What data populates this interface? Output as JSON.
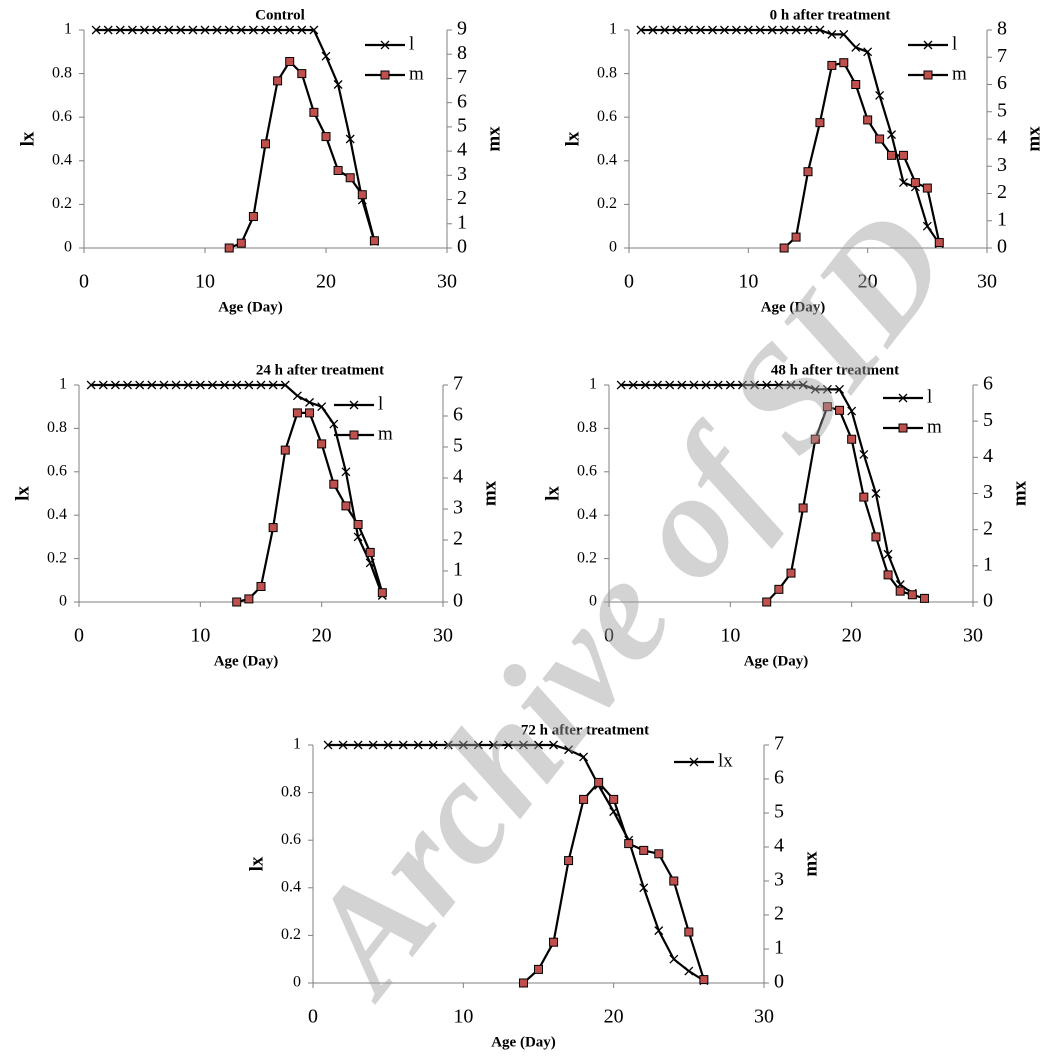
{
  "chart_data": [
    {
      "type": "line",
      "title": "Control",
      "x_label": "Age (Day)",
      "y_label": "lx",
      "y2_label": "mx",
      "x": [
        1,
        2,
        3,
        4,
        5,
        6,
        7,
        8,
        9,
        10,
        11,
        12,
        13,
        14,
        15,
        16,
        17,
        18,
        19,
        20,
        21,
        22,
        23,
        24
      ],
      "xlim": [
        0,
        30
      ],
      "xticks": [
        0,
        10,
        20,
        30
      ],
      "ylim": [
        0,
        1
      ],
      "yticks": [
        0,
        0.2,
        0.4,
        0.6,
        0.8,
        1
      ],
      "y2lim": [
        0,
        9
      ],
      "y2ticks": [
        0,
        1,
        2,
        3,
        4,
        5,
        6,
        7,
        8,
        9
      ],
      "legend": "top-right",
      "series": [
        {
          "name": "l",
          "axis": "y",
          "color": "#000000",
          "marker": "x",
          "values": [
            1,
            1,
            1,
            1,
            1,
            1,
            1,
            1,
            1,
            1,
            1,
            1,
            1,
            1,
            1,
            1,
            1,
            1,
            1,
            0.88,
            0.75,
            0.5,
            0.22,
            0.03
          ]
        },
        {
          "name": "m",
          "axis": "y2",
          "color": "#000000",
          "marker": "square",
          "marker_color": "#c0504d",
          "values": [
            null,
            null,
            null,
            null,
            null,
            null,
            null,
            null,
            null,
            null,
            null,
            0,
            0.2,
            1.3,
            4.3,
            6.9,
            7.7,
            7.2,
            5.6,
            4.6,
            3.2,
            2.9,
            2.2,
            0.3
          ]
        }
      ]
    },
    {
      "type": "line",
      "title": "0 h after treatment",
      "x_label": "Age (Day)",
      "y_label": "lx",
      "y2_label": "mx",
      "x": [
        1,
        2,
        3,
        4,
        5,
        6,
        7,
        8,
        9,
        10,
        11,
        12,
        13,
        14,
        15,
        16,
        17,
        18,
        19,
        20,
        21,
        22,
        23,
        24,
        25,
        26
      ],
      "xlim": [
        0,
        30
      ],
      "xticks": [
        0,
        10,
        20,
        30
      ],
      "ylim": [
        0,
        1
      ],
      "yticks": [
        0,
        0.2,
        0.4,
        0.6,
        0.8,
        1
      ],
      "y2lim": [
        0,
        8
      ],
      "y2ticks": [
        0,
        1,
        2,
        3,
        4,
        5,
        6,
        7,
        8
      ],
      "legend": "top-right",
      "series": [
        {
          "name": "l",
          "axis": "y",
          "color": "#000000",
          "marker": "x",
          "values": [
            1,
            1,
            1,
            1,
            1,
            1,
            1,
            1,
            1,
            1,
            1,
            1,
            1,
            1,
            1,
            1,
            0.98,
            0.98,
            0.92,
            0.9,
            0.7,
            0.52,
            0.3,
            0.28,
            0.1,
            0.02
          ]
        },
        {
          "name": "m",
          "axis": "y2",
          "color": "#000000",
          "marker": "square",
          "marker_color": "#c0504d",
          "values": [
            null,
            null,
            null,
            null,
            null,
            null,
            null,
            null,
            null,
            null,
            null,
            null,
            0,
            0.4,
            2.8,
            4.6,
            6.7,
            6.8,
            6.0,
            4.7,
            4.0,
            3.4,
            3.4,
            2.4,
            2.2,
            0.2
          ]
        }
      ]
    },
    {
      "type": "line",
      "title": "24 h after treatment",
      "x_label": "Age (Day)",
      "y_label": "lx",
      "y2_label": "mx",
      "x": [
        1,
        2,
        3,
        4,
        5,
        6,
        7,
        8,
        9,
        10,
        11,
        12,
        13,
        14,
        15,
        16,
        17,
        18,
        19,
        20,
        21,
        22,
        23,
        24,
        25
      ],
      "xlim": [
        0,
        30
      ],
      "xticks": [
        0,
        10,
        20,
        30
      ],
      "ylim": [
        0,
        1
      ],
      "yticks": [
        0,
        0.2,
        0.4,
        0.6,
        0.8,
        1
      ],
      "y2lim": [
        0,
        7
      ],
      "y2ticks": [
        0,
        1,
        2,
        3,
        4,
        5,
        6,
        7
      ],
      "legend": "top-right",
      "series": [
        {
          "name": "l",
          "axis": "y",
          "color": "#000000",
          "marker": "x",
          "values": [
            1,
            1,
            1,
            1,
            1,
            1,
            1,
            1,
            1,
            1,
            1,
            1,
            1,
            1,
            1,
            1,
            1,
            0.95,
            0.92,
            0.9,
            0.82,
            0.6,
            0.3,
            0.18,
            0.03
          ]
        },
        {
          "name": "m",
          "axis": "y2",
          "color": "#000000",
          "marker": "square",
          "marker_color": "#c0504d",
          "values": [
            null,
            null,
            null,
            null,
            null,
            null,
            null,
            null,
            null,
            null,
            null,
            null,
            0,
            0.1,
            0.5,
            2.4,
            4.9,
            6.1,
            6.1,
            5.1,
            3.8,
            3.1,
            2.5,
            1.6,
            0.3
          ]
        }
      ]
    },
    {
      "type": "line",
      "title": "48 h after treatment",
      "x_label": "Age (Day)",
      "y_label": "lx",
      "y2_label": "mx",
      "x": [
        1,
        2,
        3,
        4,
        5,
        6,
        7,
        8,
        9,
        10,
        11,
        12,
        13,
        14,
        15,
        16,
        17,
        18,
        19,
        20,
        21,
        22,
        23,
        24,
        25,
        26
      ],
      "xlim": [
        0,
        30
      ],
      "xticks": [
        0,
        10,
        20,
        30
      ],
      "ylim": [
        0,
        1
      ],
      "yticks": [
        0,
        0.2,
        0.4,
        0.6,
        0.8,
        1
      ],
      "y2lim": [
        0,
        6
      ],
      "y2ticks": [
        0,
        1,
        2,
        3,
        4,
        5,
        6
      ],
      "legend": "top-right",
      "series": [
        {
          "name": "l",
          "axis": "y",
          "color": "#000000",
          "marker": "x",
          "values": [
            1,
            1,
            1,
            1,
            1,
            1,
            1,
            1,
            1,
            1,
            1,
            1,
            1,
            1,
            1,
            1,
            0.98,
            0.98,
            0.98,
            0.88,
            0.68,
            0.5,
            0.22,
            0.08,
            0.04,
            null
          ]
        },
        {
          "name": "m",
          "axis": "y2",
          "color": "#000000",
          "marker": "square",
          "marker_color": "#c0504d",
          "values": [
            null,
            null,
            null,
            null,
            null,
            null,
            null,
            null,
            null,
            null,
            null,
            null,
            0,
            0.35,
            0.8,
            2.6,
            4.5,
            5.4,
            5.3,
            4.5,
            2.9,
            1.8,
            0.75,
            0.3,
            0.2,
            0.1
          ]
        }
      ]
    },
    {
      "type": "line",
      "title": "72 h after treatment",
      "x_label": "Age (Day)",
      "y_label": "lx",
      "y2_label": "mx",
      "x": [
        1,
        2,
        3,
        4,
        5,
        6,
        7,
        8,
        9,
        10,
        11,
        12,
        13,
        14,
        15,
        16,
        17,
        18,
        19,
        20,
        21,
        22,
        23,
        24,
        25,
        26
      ],
      "xlim": [
        0,
        30
      ],
      "xticks": [
        0,
        10,
        20,
        30
      ],
      "ylim": [
        0,
        1
      ],
      "yticks": [
        0,
        0.2,
        0.4,
        0.6,
        0.8,
        1
      ],
      "y2lim": [
        0,
        7
      ],
      "y2ticks": [
        0,
        1,
        2,
        3,
        4,
        5,
        6,
        7
      ],
      "legend": "top-right",
      "series": [
        {
          "name": "lx",
          "axis": "y",
          "color": "#000000",
          "marker": "x",
          "values": [
            1,
            1,
            1,
            1,
            1,
            1,
            1,
            1,
            1,
            1,
            1,
            1,
            1,
            1,
            1,
            1,
            0.98,
            0.95,
            0.83,
            0.72,
            0.6,
            0.4,
            0.22,
            0.1,
            0.05,
            0.01
          ]
        },
        {
          "axis": "y2",
          "color": "#000000",
          "marker": "square",
          "marker_color": "#c0504d",
          "values": [
            null,
            null,
            null,
            null,
            null,
            null,
            null,
            null,
            null,
            null,
            null,
            null,
            null,
            0,
            0.4,
            1.2,
            3.6,
            5.4,
            5.9,
            5.4,
            4.1,
            3.9,
            3.8,
            3.0,
            1.5,
            0.1
          ]
        }
      ]
    }
  ],
  "watermark": "Archive of SID"
}
